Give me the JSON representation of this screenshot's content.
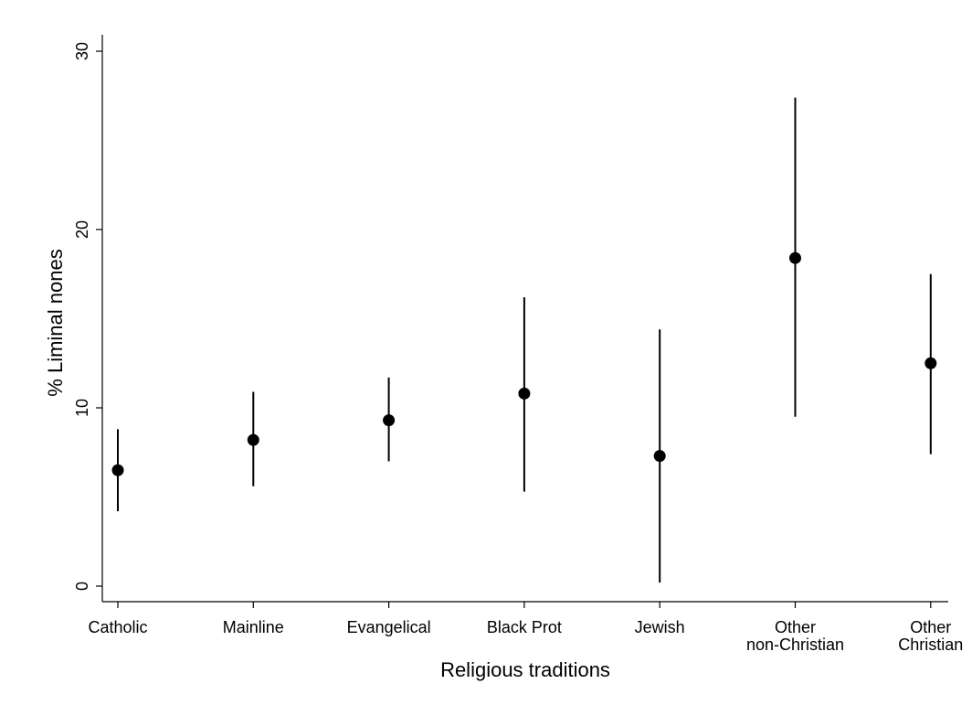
{
  "chart_data": {
    "type": "scatter",
    "title": "",
    "xlabel": "Religious traditions",
    "ylabel": "% Liminal nones",
    "ylim": [
      0,
      30
    ],
    "yticks": [
      0,
      10,
      20,
      30
    ],
    "grid": false,
    "legend": "none",
    "categories": [
      [
        "Catholic"
      ],
      [
        "Mainline"
      ],
      [
        "Evangelical"
      ],
      [
        "Black Prot"
      ],
      [
        "Jewish"
      ],
      [
        "Other",
        "non-Christian"
      ],
      [
        "Other",
        "Christian"
      ]
    ],
    "series": [
      {
        "estimates": [
          6.5,
          8.2,
          9.3,
          10.8,
          7.3,
          18.4,
          12.5
        ],
        "lower": [
          4.2,
          5.6,
          7.0,
          5.3,
          0.2,
          9.5,
          7.4
        ],
        "upper": [
          8.8,
          10.9,
          11.7,
          16.2,
          14.4,
          27.4,
          17.5
        ]
      }
    ],
    "colors": {
      "marker": "#000000",
      "axis": "#000000",
      "background": "#ffffff"
    }
  }
}
